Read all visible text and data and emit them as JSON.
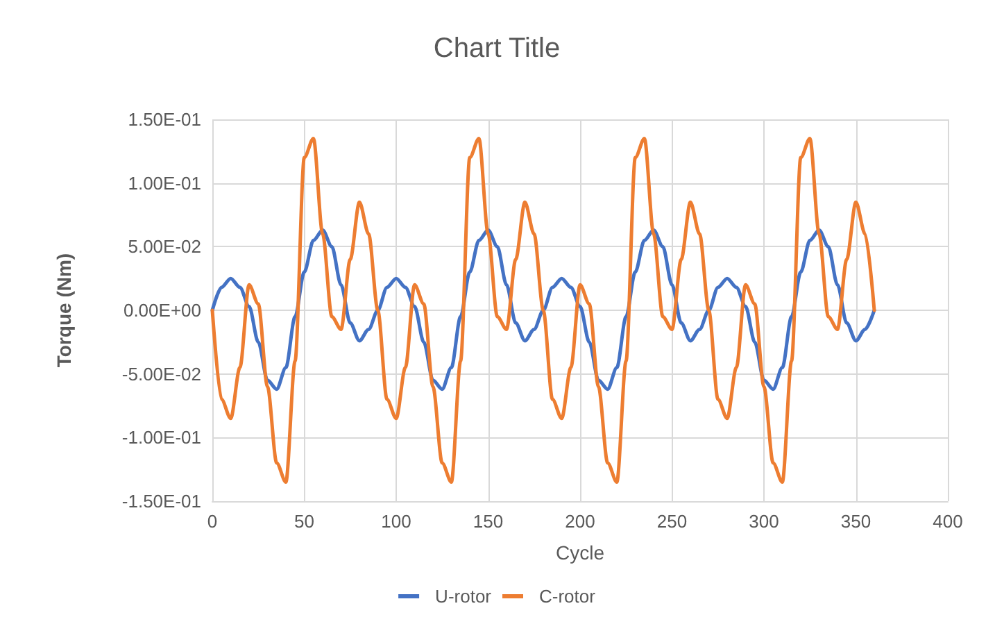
{
  "chart_data": {
    "type": "line",
    "title": "Chart Title",
    "xlabel": "Cycle",
    "ylabel": "Torque (Nm)",
    "x": [
      0,
      5,
      10,
      15,
      20,
      25,
      30,
      35,
      40,
      45,
      50,
      55,
      60,
      65,
      70,
      75,
      80,
      85,
      90,
      95,
      100,
      105,
      110,
      115,
      120,
      125,
      130,
      135,
      140,
      145,
      150,
      155,
      160,
      165,
      170,
      175,
      180,
      185,
      190,
      195,
      200,
      205,
      210,
      215,
      220,
      225,
      230,
      235,
      240,
      245,
      250,
      255,
      260,
      265,
      270,
      275,
      280,
      285,
      290,
      295,
      300,
      305,
      310,
      315,
      320,
      325,
      330,
      335,
      340,
      345,
      350,
      355,
      360
    ],
    "series": [
      {
        "name": "U-rotor",
        "color": "#4472c4",
        "values": [
          0,
          0.018,
          0.025,
          0.018,
          0.003,
          -0.025,
          -0.055,
          -0.062,
          -0.045,
          -0.005,
          0.03,
          0.055,
          0.063,
          0.05,
          0.02,
          -0.01,
          -0.024,
          -0.015,
          0,
          0.018,
          0.025,
          0.018,
          0.003,
          -0.025,
          -0.055,
          -0.062,
          -0.045,
          -0.005,
          0.03,
          0.055,
          0.063,
          0.05,
          0.02,
          -0.01,
          -0.024,
          -0.015,
          0,
          0.018,
          0.025,
          0.018,
          0.003,
          -0.025,
          -0.055,
          -0.062,
          -0.045,
          -0.005,
          0.03,
          0.055,
          0.063,
          0.05,
          0.02,
          -0.01,
          -0.024,
          -0.015,
          0,
          0.018,
          0.025,
          0.018,
          0.003,
          -0.025,
          -0.055,
          -0.062,
          -0.045,
          -0.005,
          0.03,
          0.055,
          0.063,
          0.05,
          0.02,
          -0.01,
          -0.024,
          -0.015,
          0
        ]
      },
      {
        "name": "C-rotor",
        "color": "#ed7d31",
        "values": [
          0,
          -0.07,
          -0.085,
          -0.045,
          0.02,
          0.005,
          -0.06,
          -0.12,
          -0.135,
          -0.04,
          0.12,
          0.135,
          0.06,
          -0.005,
          -0.015,
          0.04,
          0.085,
          0.06,
          0,
          -0.07,
          -0.085,
          -0.045,
          0.02,
          0.005,
          -0.06,
          -0.12,
          -0.135,
          -0.04,
          0.12,
          0.135,
          0.06,
          -0.005,
          -0.015,
          0.04,
          0.085,
          0.06,
          0,
          -0.07,
          -0.085,
          -0.045,
          0.02,
          0.005,
          -0.06,
          -0.12,
          -0.135,
          -0.04,
          0.12,
          0.135,
          0.06,
          -0.005,
          -0.015,
          0.04,
          0.085,
          0.06,
          0,
          -0.07,
          -0.085,
          -0.045,
          0.02,
          0.005,
          -0.06,
          -0.12,
          -0.135,
          -0.04,
          0.12,
          0.135,
          0.06,
          -0.005,
          -0.015,
          0.04,
          0.085,
          0.06,
          0
        ]
      }
    ],
    "xlim": [
      0,
      400
    ],
    "xticks": [
      0,
      50,
      100,
      150,
      200,
      250,
      300,
      350,
      400
    ],
    "ylim": [
      -0.15,
      0.15
    ],
    "yticks": [
      {
        "value": -0.15,
        "label": "-1.50E-01"
      },
      {
        "value": -0.1,
        "label": "-1.00E-01"
      },
      {
        "value": -0.05,
        "label": "-5.00E-02"
      },
      {
        "value": 0,
        "label": "0.00E+00"
      },
      {
        "value": 0.05,
        "label": "5.00E-02"
      },
      {
        "value": 0.1,
        "label": "1.00E-01"
      },
      {
        "value": 0.15,
        "label": "1.50E-01"
      }
    ],
    "grid": true,
    "legend": "bottom",
    "marker": "none",
    "line_style": "solid"
  }
}
